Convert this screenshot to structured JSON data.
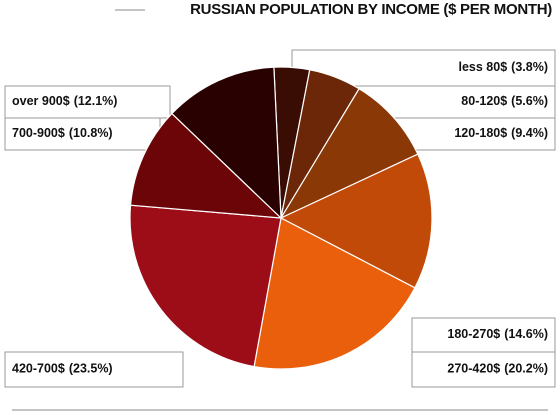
{
  "chart_data": {
    "type": "pie",
    "title": "RUSSIAN POPULATION BY INCOME ($ PER MONTH)",
    "categories": [
      "less 80$",
      "80-120$",
      "120-180$",
      "180-270$",
      "270-420$",
      "420-700$",
      "700-900$",
      "over 900$"
    ],
    "values": [
      3.8,
      5.6,
      9.4,
      14.6,
      20.2,
      23.5,
      10.8,
      12.1
    ],
    "value_labels": [
      "(3.8%)",
      "(5.6%)",
      "(9.4%)",
      "(14.6%)",
      "(20.2%)",
      "(23.5%)",
      "(10.8%)",
      "(12.1%)"
    ],
    "colors": [
      "#3a0d04",
      "#6b2708",
      "#8a3806",
      "#c24a08",
      "#e95f0b",
      "#9c0d18",
      "#6c0507",
      "#2a0101"
    ]
  }
}
